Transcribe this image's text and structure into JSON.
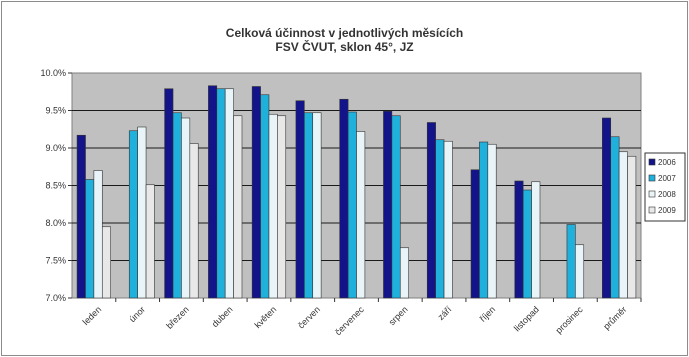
{
  "chart_data": {
    "type": "bar",
    "title_lines": [
      "Celková účinnost v jednotlivých měsících",
      "FSV ČVUT, sklon 45°, JZ"
    ],
    "categories": [
      "leden",
      "únor",
      "březen",
      "duben",
      "květen",
      "červen",
      "červenec",
      "srpen",
      "září",
      "říjen",
      "listopad",
      "prosinec",
      "průměr"
    ],
    "series": [
      {
        "name": "2006",
        "color": "#14148a",
        "values": [
          9.17,
          null,
          9.79,
          9.83,
          9.82,
          9.63,
          9.65,
          9.49,
          9.34,
          8.71,
          8.56,
          null,
          9.4
        ]
      },
      {
        "name": "2007",
        "color": "#20b0dc",
        "values": [
          8.58,
          9.23,
          9.47,
          9.79,
          9.71,
          9.47,
          9.48,
          9.43,
          9.11,
          9.08,
          8.44,
          7.98,
          9.15
        ]
      },
      {
        "name": "2008",
        "color": "#e8f4f8",
        "values": [
          8.7,
          9.28,
          9.4,
          9.79,
          9.45,
          9.47,
          9.22,
          7.67,
          9.09,
          9.05,
          8.55,
          7.71,
          8.95
        ]
      },
      {
        "name": "2009",
        "color": "#e8e8e8",
        "values": [
          7.95,
          8.51,
          9.06,
          9.43,
          9.43,
          null,
          null,
          null,
          null,
          null,
          null,
          null,
          8.89
        ]
      }
    ],
    "y_tick_labels": [
      "7.0%",
      "7.5%",
      "8.0%",
      "8.5%",
      "9.0%",
      "9.5%",
      "10.0%"
    ],
    "ylim": [
      7.0,
      10.0
    ],
    "y_step": 0.5,
    "grid": true,
    "legend_position": "right",
    "plot_background": "#c0c0c0"
  }
}
